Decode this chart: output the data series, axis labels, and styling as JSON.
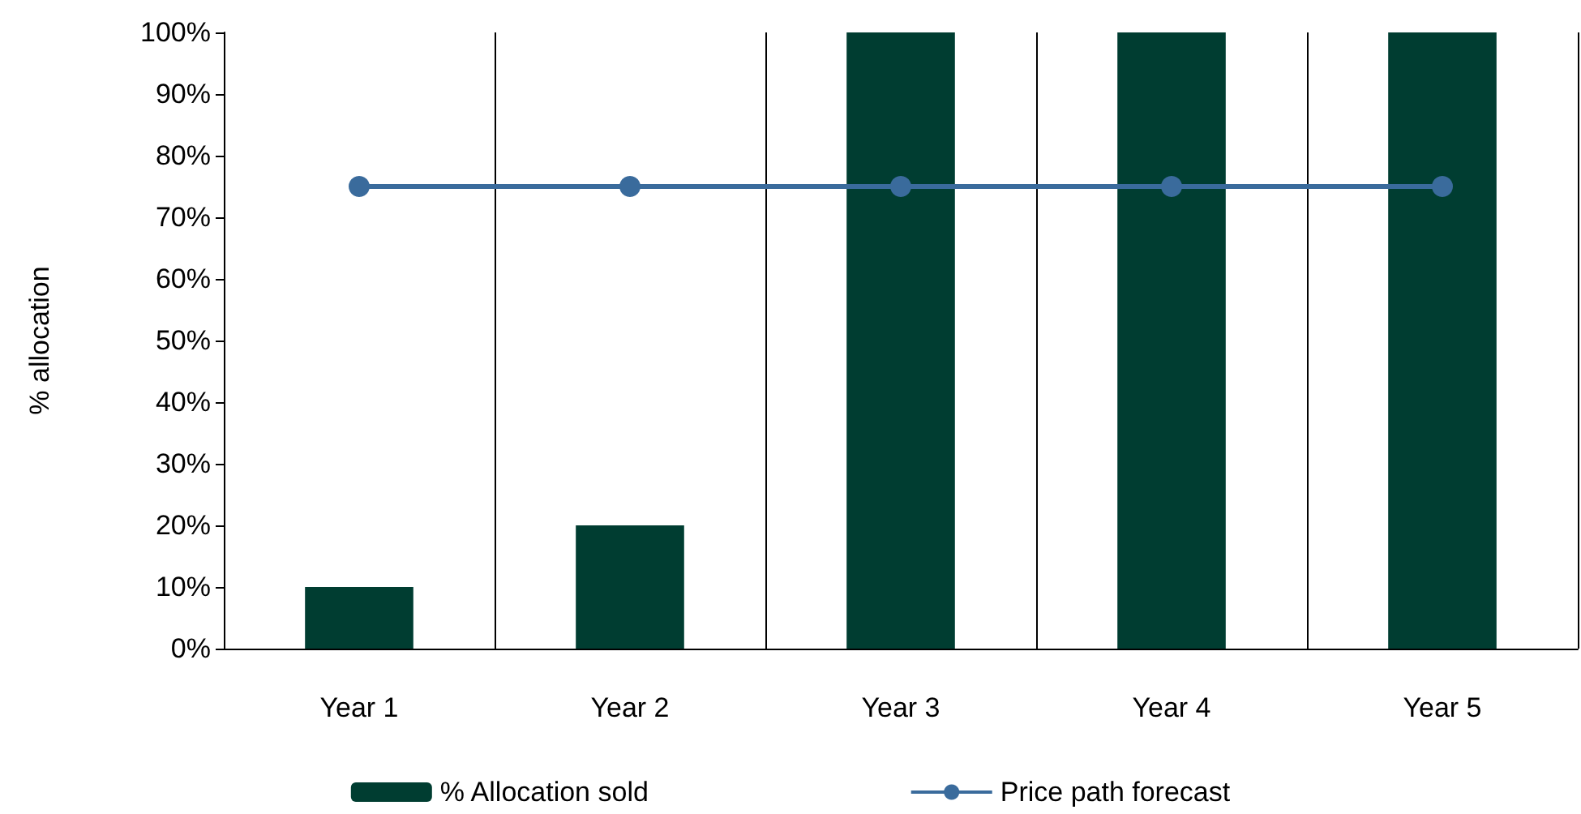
{
  "chart_data": {
    "type": "bar",
    "ylabel": "% allocation",
    "categories": [
      "Year 1",
      "Year 2",
      "Year 3",
      "Year 4",
      "Year 5"
    ],
    "series": [
      {
        "name": "% Allocation sold",
        "color": "#003d31",
        "values": [
          10,
          20,
          100,
          100,
          100
        ]
      },
      {
        "name": "Price path forecast",
        "type": "line",
        "color": "#3a6b9c",
        "values": [
          75,
          75,
          75,
          75,
          75
        ],
        "marker": "circle"
      }
    ],
    "ylim": [
      0,
      100
    ],
    "yticks": [
      {
        "value": 0,
        "label": "0%"
      },
      {
        "value": 10,
        "label": "10%"
      },
      {
        "value": 20,
        "label": "20%"
      },
      {
        "value": 30,
        "label": "30%"
      },
      {
        "value": 40,
        "label": "40%"
      },
      {
        "value": 50,
        "label": "50%"
      },
      {
        "value": 60,
        "label": "60%"
      },
      {
        "value": 70,
        "label": "70%"
      },
      {
        "value": 80,
        "label": "80%"
      },
      {
        "value": 90,
        "label": "90%"
      },
      {
        "value": 100,
        "label": "100%"
      }
    ],
    "grid": "x",
    "legend": "bottom"
  }
}
